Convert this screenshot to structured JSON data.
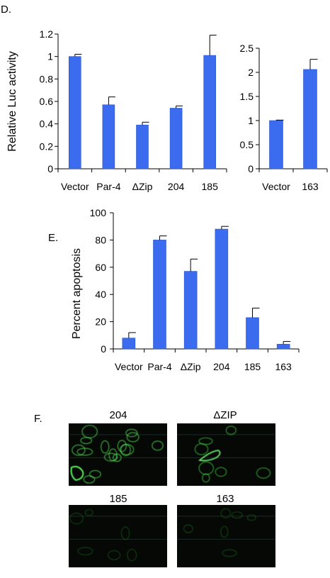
{
  "panels": {
    "d_label": "D.",
    "e_label": "E.",
    "f_label": "F."
  },
  "chart_data": [
    {
      "type": "bar",
      "id": "d-left",
      "title": "",
      "ylabel": "Relative Luc activity",
      "xlabel": "",
      "categories": [
        "Vector",
        "Par-4",
        "ΔZip",
        "204",
        "185"
      ],
      "values": [
        1.0,
        0.57,
        0.39,
        0.54,
        1.01
      ],
      "errors": [
        0.02,
        0.07,
        0.025,
        0.02,
        0.18
      ],
      "ylim": [
        0,
        1.2
      ],
      "yticks": [
        "0",
        "0.2",
        "0.4",
        "0.6",
        "0.8",
        "1",
        "1.2"
      ],
      "grid": false,
      "color": "#3b6cf0"
    },
    {
      "type": "bar",
      "id": "d-right",
      "title": "",
      "ylabel": "",
      "xlabel": "",
      "categories": [
        "Vector",
        "163"
      ],
      "values": [
        1.0,
        2.06
      ],
      "errors": [
        0.01,
        0.21
      ],
      "ylim": [
        0,
        2.5
      ],
      "yticks": [
        "0",
        "0.5",
        "1",
        "1.5",
        "2",
        "2.5"
      ],
      "grid": false,
      "color": "#3b6cf0"
    },
    {
      "type": "bar",
      "id": "e",
      "title": "",
      "ylabel": "Percent apoptosis",
      "xlabel": "",
      "categories": [
        "Vector",
        "Par-4",
        "ΔZip",
        "204",
        "185",
        "163"
      ],
      "values": [
        8,
        80,
        57,
        88,
        23,
        3.5
      ],
      "errors": [
        4,
        3,
        9,
        2,
        7,
        2
      ],
      "ylim": [
        0,
        100
      ],
      "yticks": [
        "0",
        "20",
        "40",
        "60",
        "80",
        "100"
      ],
      "grid": false,
      "color": "#3b6cf0"
    }
  ],
  "micrographs": [
    {
      "title": "204",
      "signal": "strong"
    },
    {
      "title": "ΔZIP",
      "signal": "medium"
    },
    {
      "title": "185",
      "signal": "faint"
    },
    {
      "title": "163",
      "signal": "faint"
    }
  ]
}
